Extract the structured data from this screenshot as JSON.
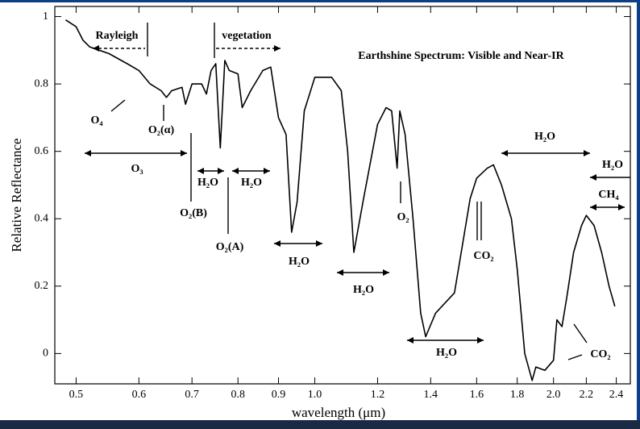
{
  "chart_data": {
    "type": "line",
    "title": "Earthshine Spectrum: Visible and Near-IR",
    "x_label": "wavelength (μm)",
    "y_label": "Relative Reflectance",
    "x_scale": "log",
    "xlim": [
      0.47,
      2.5
    ],
    "ylim": [
      -0.09,
      1.03
    ],
    "xticks": [
      0.5,
      0.6,
      0.7,
      0.8,
      0.9,
      {
        "value": 1,
        "label": "1.0"
      },
      1.2,
      1.4,
      1.6,
      1.8,
      {
        "value": 2,
        "label": "2.0"
      },
      2.2,
      2.4
    ],
    "yticks": [
      0,
      0.2,
      0.4,
      0.6,
      0.8,
      1
    ],
    "series": [
      {
        "color": "#000000",
        "x": [
          0.485,
          0.5,
          0.51,
          0.52,
          0.55,
          0.58,
          0.6,
          0.62,
          0.64,
          0.65,
          0.66,
          0.68,
          0.687,
          0.7,
          0.72,
          0.73,
          0.74,
          0.75,
          0.76,
          0.77,
          0.78,
          0.8,
          0.81,
          0.83,
          0.86,
          0.88,
          0.9,
          0.92,
          0.935,
          0.95,
          0.97,
          1.0,
          1.05,
          1.08,
          1.1,
          1.12,
          1.15,
          1.2,
          1.23,
          1.25,
          1.27,
          1.28,
          1.3,
          1.33,
          1.36,
          1.38,
          1.42,
          1.5,
          1.53,
          1.57,
          1.6,
          1.65,
          1.68,
          1.72,
          1.77,
          1.8,
          1.84,
          1.88,
          1.9,
          1.95,
          2.0,
          2.02,
          2.05,
          2.08,
          2.12,
          2.17,
          2.2,
          2.25,
          2.3,
          2.35,
          2.39
        ],
        "values": [
          0.99,
          0.97,
          0.93,
          0.91,
          0.89,
          0.86,
          0.84,
          0.8,
          0.78,
          0.76,
          0.78,
          0.79,
          0.74,
          0.8,
          0.8,
          0.77,
          0.84,
          0.86,
          0.61,
          0.87,
          0.84,
          0.83,
          0.73,
          0.78,
          0.84,
          0.85,
          0.7,
          0.65,
          0.36,
          0.45,
          0.72,
          0.82,
          0.82,
          0.78,
          0.6,
          0.3,
          0.45,
          0.68,
          0.73,
          0.72,
          0.55,
          0.72,
          0.65,
          0.4,
          0.12,
          0.05,
          0.12,
          0.18,
          0.3,
          0.46,
          0.52,
          0.55,
          0.56,
          0.5,
          0.4,
          0.25,
          0,
          -0.08,
          -0.04,
          -0.05,
          -0.02,
          0.1,
          0.08,
          0.17,
          0.3,
          0.38,
          0.41,
          0.38,
          0.3,
          0.2,
          0.14
        ]
      }
    ],
    "annotations": [
      "Rayleigh",
      "vegetation",
      "O₄",
      "O₂(α)",
      "O₃",
      "O₂(B)",
      "H₂O",
      "H₂O",
      "O₂(A)",
      "H₂O",
      "H₂O",
      "O₂",
      "CO₂",
      "H₂O",
      "H₂O",
      "H₂O",
      "CH₄",
      "CO₂"
    ]
  }
}
